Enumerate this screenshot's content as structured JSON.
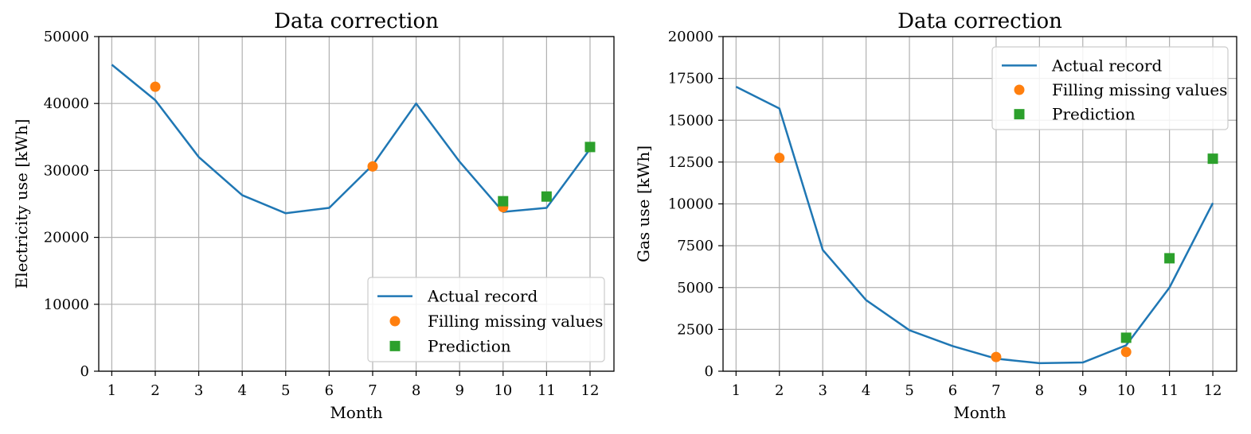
{
  "colors": {
    "actual": "#1f77b4",
    "filling": "#ff7f0e",
    "prediction": "#2ca02c",
    "grid": "#b0b0b0"
  },
  "chart_data": [
    {
      "type": "line",
      "title": "Data correction",
      "xlabel": "Month",
      "ylabel": "Electricity use [kWh]",
      "xlim": [
        0.7,
        12.55
      ],
      "ylim": [
        0,
        50000
      ],
      "x_ticks": [
        1,
        2,
        3,
        4,
        5,
        6,
        7,
        8,
        9,
        10,
        11,
        12
      ],
      "y_ticks": [
        0,
        10000,
        20000,
        30000,
        40000,
        50000
      ],
      "grid": true,
      "legend_position": "lower-right",
      "series": [
        {
          "name": "Actual record",
          "kind": "line",
          "x": [
            1,
            2,
            3,
            4,
            5,
            6,
            7,
            8,
            9,
            10,
            11,
            12
          ],
          "y": [
            45800,
            40500,
            32000,
            26300,
            23600,
            24400,
            30800,
            40000,
            31300,
            23800,
            24400,
            33200
          ]
        },
        {
          "name": "Filling missing values",
          "kind": "circle",
          "x": [
            2,
            7,
            10
          ],
          "y": [
            42500,
            30600,
            24500
          ]
        },
        {
          "name": "Prediction",
          "kind": "square",
          "x": [
            10,
            11,
            12
          ],
          "y": [
            25400,
            26100,
            33500
          ]
        }
      ]
    },
    {
      "type": "line",
      "title": "Data correction",
      "xlabel": "Month",
      "ylabel": "Gas use [kWh]",
      "xlim": [
        0.7,
        12.55
      ],
      "ylim": [
        0,
        20000
      ],
      "x_ticks": [
        1,
        2,
        3,
        4,
        5,
        6,
        7,
        8,
        9,
        10,
        11,
        12
      ],
      "y_ticks": [
        0,
        2500,
        5000,
        7500,
        10000,
        12500,
        15000,
        17500,
        20000
      ],
      "grid": true,
      "legend_position": "upper-right",
      "series": [
        {
          "name": "Actual record",
          "kind": "line",
          "x": [
            1,
            2,
            3,
            4,
            5,
            6,
            7,
            8,
            9,
            10,
            11,
            12
          ],
          "y": [
            17000,
            15700,
            7250,
            4250,
            2450,
            1500,
            750,
            480,
            520,
            1550,
            5000,
            10050
          ]
        },
        {
          "name": "Filling missing values",
          "kind": "circle",
          "x": [
            2,
            7,
            10
          ],
          "y": [
            12750,
            850,
            1150
          ]
        },
        {
          "name": "Prediction",
          "kind": "square",
          "x": [
            10,
            11,
            12
          ],
          "y": [
            2000,
            6750,
            12700
          ]
        }
      ]
    }
  ]
}
